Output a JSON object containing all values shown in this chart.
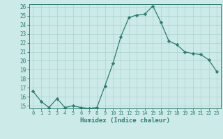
{
  "x": [
    0,
    1,
    2,
    3,
    4,
    5,
    6,
    7,
    8,
    9,
    10,
    11,
    12,
    13,
    14,
    15,
    16,
    17,
    18,
    19,
    20,
    21,
    22,
    23
  ],
  "y": [
    16.6,
    15.5,
    14.8,
    15.8,
    14.8,
    15.0,
    14.8,
    14.7,
    14.8,
    17.2,
    19.7,
    22.7,
    24.8,
    25.1,
    25.2,
    26.1,
    24.3,
    22.2,
    21.8,
    21.0,
    20.8,
    20.7,
    20.1,
    18.8
  ],
  "ylim_min": 15,
  "ylim_max": 26,
  "yticks": [
    15,
    16,
    17,
    18,
    19,
    20,
    21,
    22,
    23,
    24,
    25,
    26
  ],
  "xlabel": "Humidex (Indice chaleur)",
  "line_color": "#2d7d6f",
  "bg_color": "#cceae7",
  "grid_color": "#aad4d0",
  "tick_color": "#2d7d6f",
  "xlabel_color": "#2d7d6f",
  "spine_color": "#2d7d6f"
}
